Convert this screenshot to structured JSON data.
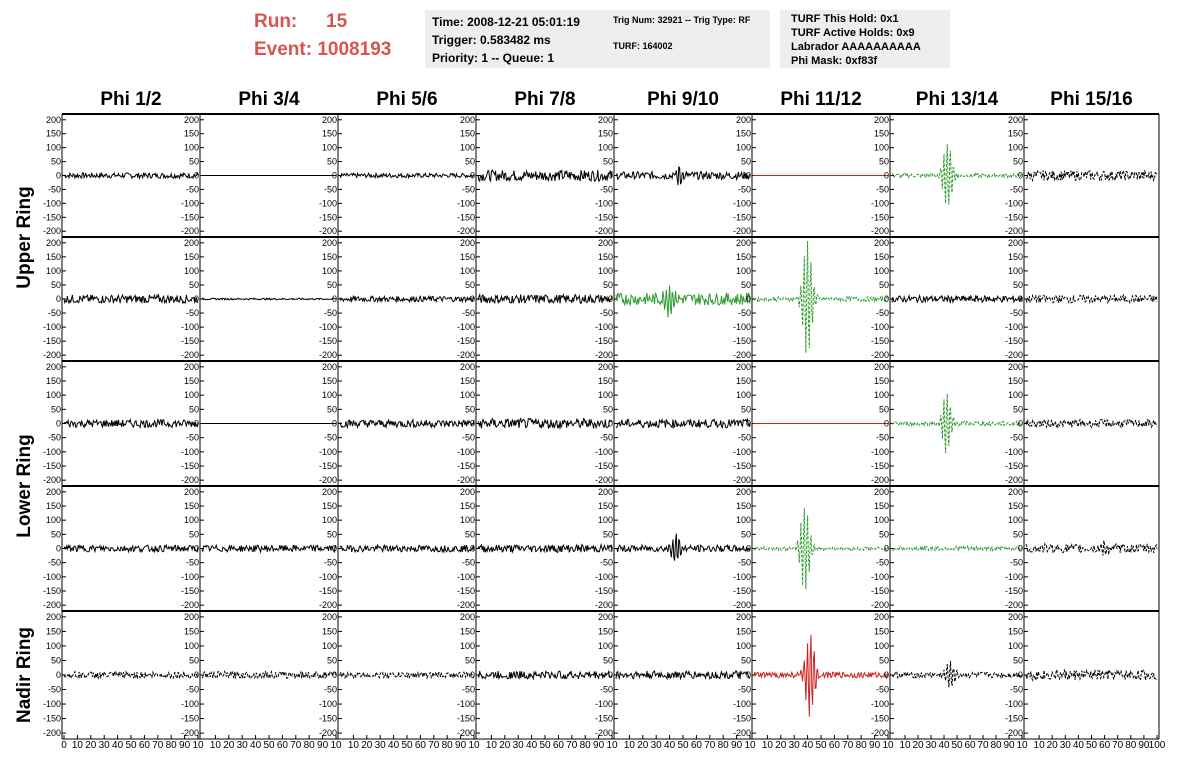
{
  "run": {
    "label": "Run:",
    "value": "15"
  },
  "event": {
    "label": "Event:",
    "value": "1008193"
  },
  "info_time": {
    "time": "Time: 2008-12-21 05:01:19",
    "trigger": "Trigger: 0.583482 ms",
    "priority": "Priority: 1 -- Queue: 1"
  },
  "info_trig": {
    "trig": "Trig Num: 32921 -- Trig Type: RF",
    "turf": "TURF: 164002"
  },
  "info_turf": {
    "hold": "TURF This Hold: 0x1",
    "active": "TURF Active Holds: 0x9",
    "labrador": "Labrador AAAAAAAAAA",
    "mask": "Phi Mask: 0xf83f"
  },
  "colors": {
    "normal": "#000000",
    "triggered": "#2e9b2e",
    "masked": "#cc2222",
    "accent": "#d9534f",
    "panel_bg": "#eeeeee"
  },
  "chart_data": {
    "type": "line",
    "columns": [
      "Phi 1/2",
      "Phi 3/4",
      "Phi 5/6",
      "Phi 7/8",
      "Phi 9/10",
      "Phi 11/12",
      "Phi 13/14",
      "Phi 15/16"
    ],
    "rows": [
      {
        "name": "Upper Ring",
        "label": "Upper Ring"
      },
      {
        "name": "Upper Ring (row 2)",
        "label": ""
      },
      {
        "name": "Lower Ring",
        "label": "Lower Ring"
      },
      {
        "name": "Lower Ring (row 2)",
        "label": ""
      },
      {
        "name": "Nadir Ring",
        "label": "Nadir Ring"
      }
    ],
    "row_labels": [
      {
        "text": "Upper Ring",
        "rows": [
          0,
          1
        ]
      },
      {
        "text": "Lower Ring",
        "rows": [
          2,
          3
        ]
      },
      {
        "text": "Nadir Ring",
        "rows": [
          4
        ]
      }
    ],
    "xlim": [
      0,
      100
    ],
    "ylim": [
      -210,
      210
    ],
    "y_ticks": [
      -200,
      -150,
      -100,
      -50,
      0,
      50,
      100,
      150,
      200
    ],
    "x_tick_labels_first": [
      "0",
      "10",
      "20",
      "30",
      "40",
      "50",
      "60",
      "70",
      "80",
      "90",
      "10"
    ],
    "x_tick_labels_middle": [
      "10",
      "20",
      "30",
      "40",
      "50",
      "60",
      "70",
      "80",
      "90",
      "10"
    ],
    "x_tick_labels_last": [
      "10",
      "20",
      "30",
      "40",
      "50",
      "60",
      "70",
      "80",
      "90",
      "100"
    ],
    "panels": [
      [
        {
          "style": "solid",
          "color": "normal",
          "amp": 10,
          "pulse": 0,
          "center": 0,
          "flat": false
        },
        {
          "style": "solid",
          "color": "normal",
          "amp": 0,
          "pulse": 0,
          "center": 0,
          "flat": true
        },
        {
          "style": "solid",
          "color": "normal",
          "amp": 8,
          "pulse": 0,
          "center": 0,
          "flat": false
        },
        {
          "style": "solid",
          "color": "normal",
          "amp": 20,
          "pulse": 0,
          "center": 0,
          "flat": false
        },
        {
          "style": "solid",
          "color": "normal",
          "amp": 14,
          "pulse": 35,
          "center": 48,
          "flat": false
        },
        {
          "style": "solid",
          "color": "masked",
          "amp": 0,
          "pulse": 0,
          "center": 0,
          "flat": true
        },
        {
          "style": "dashed",
          "color": "triggered",
          "amp": 7,
          "pulse": 120,
          "center": 43,
          "flat": false
        },
        {
          "style": "dashed",
          "color": "normal",
          "amp": 18,
          "pulse": 0,
          "center": 0,
          "flat": false
        }
      ],
      [
        {
          "style": "solid",
          "color": "normal",
          "amp": 15,
          "pulse": 0,
          "center": 0,
          "flat": false
        },
        {
          "style": "solid",
          "color": "normal",
          "amp": 3,
          "pulse": 0,
          "center": 0,
          "flat": false
        },
        {
          "style": "solid",
          "color": "normal",
          "amp": 10,
          "pulse": 0,
          "center": 0,
          "flat": false
        },
        {
          "style": "solid",
          "color": "normal",
          "amp": 16,
          "pulse": 0,
          "center": 0,
          "flat": false
        },
        {
          "style": "solid",
          "color": "triggered",
          "amp": 22,
          "pulse": 50,
          "center": 40,
          "flat": false
        },
        {
          "style": "dashed",
          "color": "triggered",
          "amp": 8,
          "pulse": 210,
          "center": 40,
          "flat": false
        },
        {
          "style": "solid",
          "color": "normal",
          "amp": 12,
          "pulse": 0,
          "center": 0,
          "flat": false
        },
        {
          "style": "dashed",
          "color": "normal",
          "amp": 14,
          "pulse": 0,
          "center": 0,
          "flat": false
        }
      ],
      [
        {
          "style": "solid",
          "color": "normal",
          "amp": 14,
          "pulse": 0,
          "center": 0,
          "flat": false
        },
        {
          "style": "solid",
          "color": "normal",
          "amp": 0,
          "pulse": 0,
          "center": 0,
          "flat": true
        },
        {
          "style": "solid",
          "color": "normal",
          "amp": 14,
          "pulse": 0,
          "center": 0,
          "flat": false
        },
        {
          "style": "solid",
          "color": "normal",
          "amp": 18,
          "pulse": 0,
          "center": 0,
          "flat": false
        },
        {
          "style": "solid",
          "color": "normal",
          "amp": 15,
          "pulse": 0,
          "center": 0,
          "flat": false
        },
        {
          "style": "solid",
          "color": "masked",
          "amp": 0,
          "pulse": 0,
          "center": 0,
          "flat": true
        },
        {
          "style": "dashed",
          "color": "triggered",
          "amp": 8,
          "pulse": 110,
          "center": 42,
          "flat": false
        },
        {
          "style": "dashed",
          "color": "normal",
          "amp": 14,
          "pulse": 0,
          "center": 0,
          "flat": false
        }
      ],
      [
        {
          "style": "solid",
          "color": "normal",
          "amp": 12,
          "pulse": 0,
          "center": 0,
          "flat": false
        },
        {
          "style": "solid",
          "color": "normal",
          "amp": 12,
          "pulse": 0,
          "center": 0,
          "flat": false
        },
        {
          "style": "solid",
          "color": "normal",
          "amp": 12,
          "pulse": 0,
          "center": 0,
          "flat": false
        },
        {
          "style": "solid",
          "color": "normal",
          "amp": 14,
          "pulse": 0,
          "center": 0,
          "flat": false
        },
        {
          "style": "solid",
          "color": "normal",
          "amp": 12,
          "pulse": 55,
          "center": 45,
          "flat": false
        },
        {
          "style": "dashed",
          "color": "triggered",
          "amp": 6,
          "pulse": 150,
          "center": 38,
          "flat": false
        },
        {
          "style": "dashed",
          "color": "triggered",
          "amp": 8,
          "pulse": 0,
          "center": 0,
          "flat": false
        },
        {
          "style": "dashed",
          "color": "normal",
          "amp": 16,
          "pulse": 30,
          "center": 60,
          "flat": false
        }
      ],
      [
        {
          "style": "dashed",
          "color": "normal",
          "amp": 12,
          "pulse": 0,
          "center": 0,
          "flat": false
        },
        {
          "style": "dashed",
          "color": "normal",
          "amp": 12,
          "pulse": 0,
          "center": 0,
          "flat": false
        },
        {
          "style": "dashed",
          "color": "normal",
          "amp": 10,
          "pulse": 0,
          "center": 0,
          "flat": false
        },
        {
          "style": "solid",
          "color": "normal",
          "amp": 14,
          "pulse": 0,
          "center": 0,
          "flat": false
        },
        {
          "style": "solid",
          "color": "normal",
          "amp": 14,
          "pulse": 0,
          "center": 0,
          "flat": false
        },
        {
          "style": "solid",
          "color": "masked",
          "amp": 10,
          "pulse": 150,
          "center": 42,
          "flat": false
        },
        {
          "style": "dashed",
          "color": "normal",
          "amp": 10,
          "pulse": 45,
          "center": 45,
          "flat": false
        },
        {
          "style": "dashed",
          "color": "normal",
          "amp": 18,
          "pulse": 0,
          "center": 0,
          "flat": false
        }
      ]
    ]
  }
}
